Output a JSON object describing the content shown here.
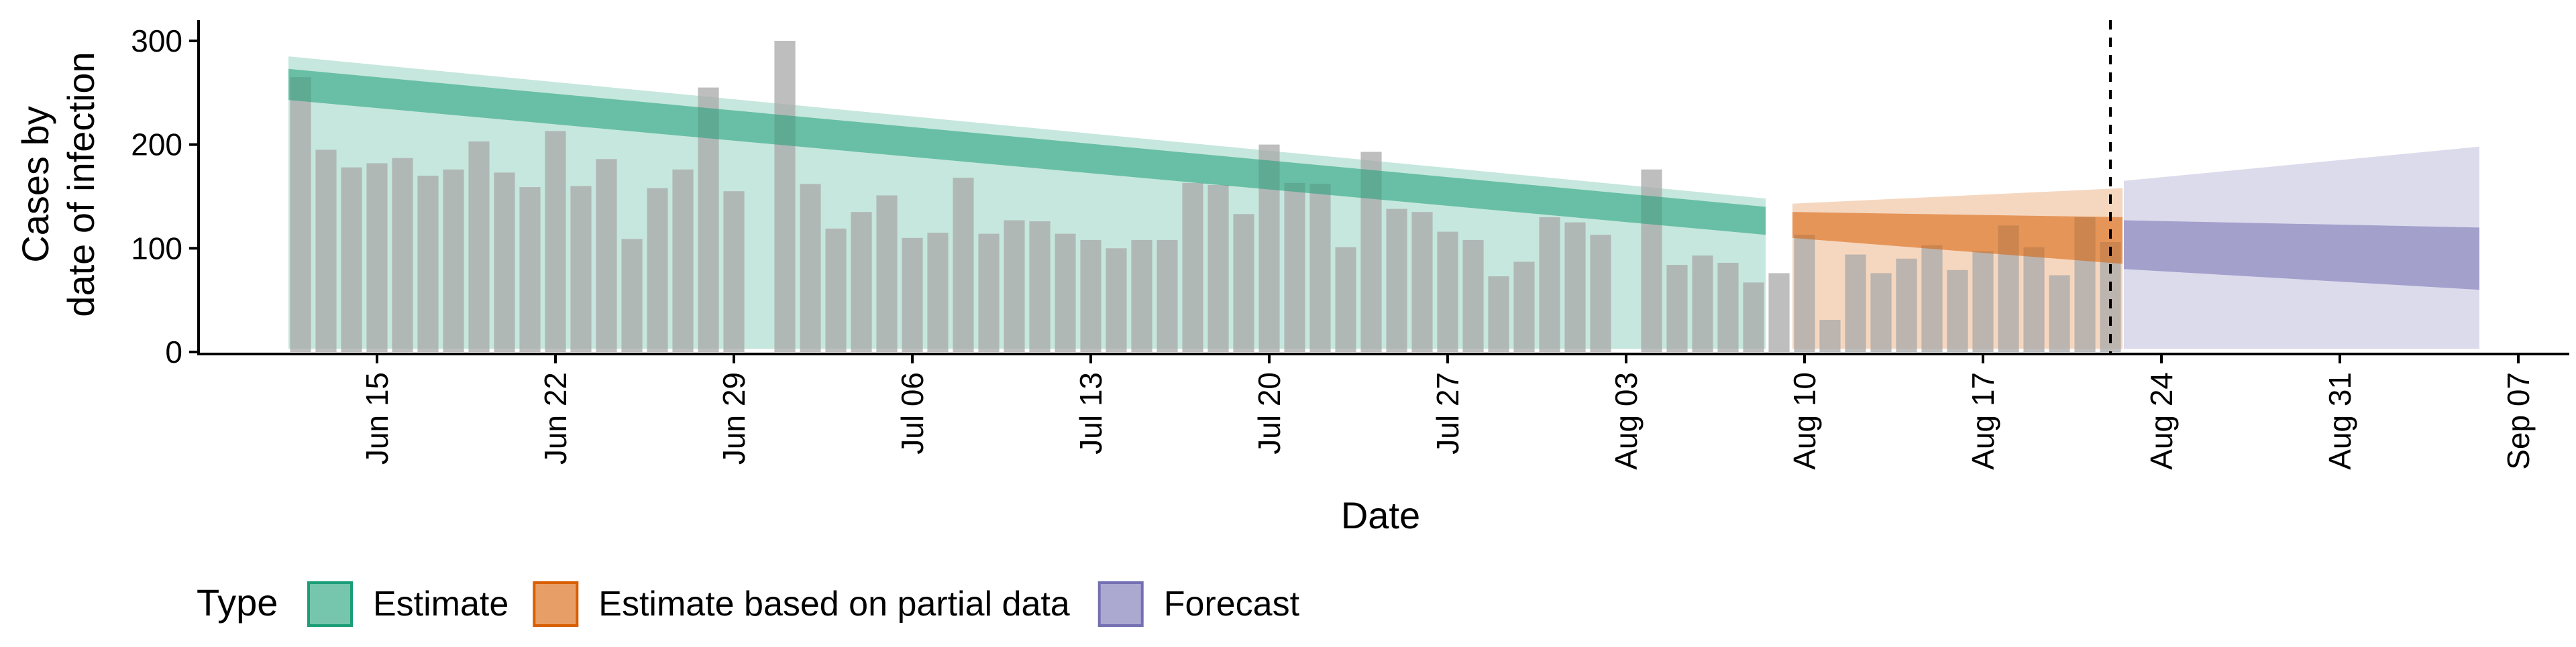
{
  "chart_data": {
    "type": "bar",
    "xlabel": "Date",
    "ylabel_lines": [
      "Cases by",
      "date of infection"
    ],
    "ylim": [
      0,
      320
    ],
    "yticks": [
      0,
      100,
      200,
      300
    ],
    "x_range": [
      "2020-06-08",
      "2020-09-09"
    ],
    "xticks": [
      {
        "date": "2020-06-15",
        "label": "Jun 15"
      },
      {
        "date": "2020-06-22",
        "label": "Jun 22"
      },
      {
        "date": "2020-06-29",
        "label": "Jun 29"
      },
      {
        "date": "2020-07-06",
        "label": "Jul 06"
      },
      {
        "date": "2020-07-13",
        "label": "Jul 13"
      },
      {
        "date": "2020-07-20",
        "label": "Jul 20"
      },
      {
        "date": "2020-07-27",
        "label": "Jul 27"
      },
      {
        "date": "2020-08-03",
        "label": "Aug 03"
      },
      {
        "date": "2020-08-10",
        "label": "Aug 10"
      },
      {
        "date": "2020-08-17",
        "label": "Aug 17"
      },
      {
        "date": "2020-08-24",
        "label": "Aug 24"
      },
      {
        "date": "2020-08-31",
        "label": "Aug 31"
      },
      {
        "date": "2020-09-07",
        "label": "Sep 07"
      }
    ],
    "vline_date": "2020-08-22",
    "bars_start_date": "2020-06-12",
    "bar_values": [
      265,
      195,
      178,
      182,
      187,
      170,
      176,
      203,
      173,
      159,
      213,
      160,
      186,
      109,
      158,
      176,
      255,
      155,
      null,
      300,
      162,
      119,
      135,
      151,
      110,
      115,
      168,
      114,
      127,
      126,
      114,
      108,
      100,
      108,
      108,
      163,
      161,
      133,
      200,
      163,
      162,
      101,
      193,
      138,
      135,
      116,
      108,
      73,
      87,
      130,
      125,
      113,
      null,
      176,
      84,
      93,
      86,
      67,
      76,
      113,
      31,
      94,
      76,
      90,
      103,
      79,
      97,
      122,
      101,
      74,
      130,
      106
    ],
    "legend": {
      "title": "Type",
      "entries": [
        {
          "label": "Estimate",
          "fill": "#1b9e77",
          "stroke": "#1b9e77"
        },
        {
          "label": "Estimate based on partial data",
          "fill": "#d95f02",
          "stroke": "#d95f02"
        },
        {
          "label": "Forecast",
          "fill": "#7570b3",
          "stroke": "#7570b3"
        }
      ]
    },
    "bar_color": "#a8a8a8",
    "series": [
      {
        "name": "Estimate",
        "color": "#1b9e77",
        "start": "2020-06-12",
        "end": "2020-08-08",
        "outer_lower": [
          3,
          3
        ],
        "outer_upper": [
          285,
          148
        ],
        "inner_lower": [
          243,
          113
        ],
        "inner_upper": [
          273,
          140
        ]
      },
      {
        "name": "Estimate based on partial data",
        "color": "#d95f02",
        "start": "2020-08-10",
        "end": "2020-08-22",
        "outer_lower": [
          3,
          3
        ],
        "outer_upper": [
          143,
          158
        ],
        "inner_lower": [
          110,
          85
        ],
        "inner_upper": [
          135,
          130
        ]
      },
      {
        "name": "Forecast",
        "color": "#7570b3",
        "start": "2020-08-23",
        "end": "2020-09-05",
        "outer_lower": [
          3,
          3
        ],
        "outer_upper": [
          165,
          198
        ],
        "inner_lower": [
          80,
          60
        ],
        "inner_upper": [
          127,
          120
        ]
      }
    ]
  }
}
